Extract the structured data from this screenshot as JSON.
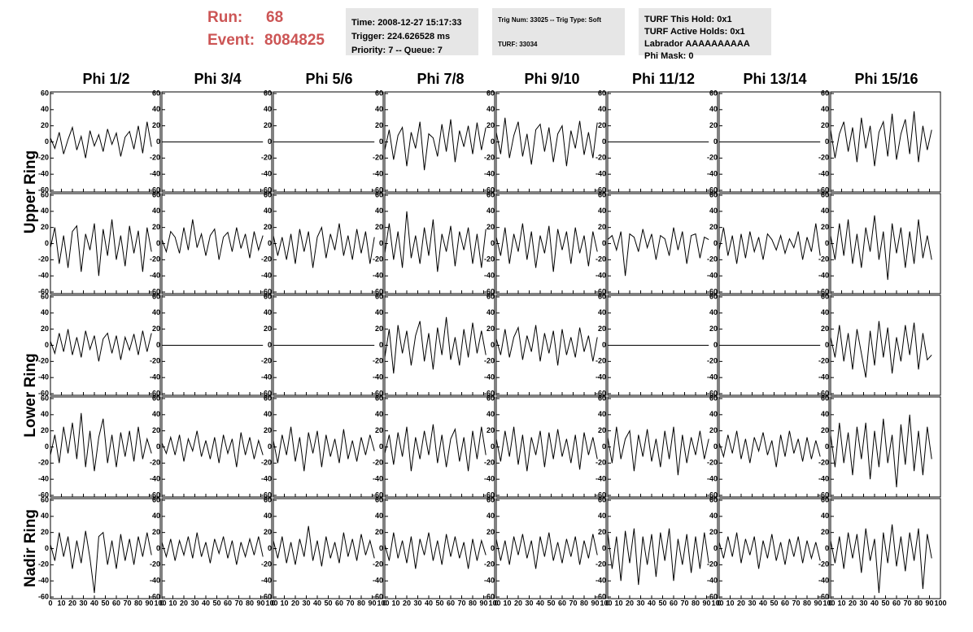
{
  "header": {
    "run_label": "Run:",
    "run": "68",
    "event_label": "Event:",
    "event": "8084825"
  },
  "info_boxes": [
    [
      "Time: 2008-12-27 15:17:33",
      "Trigger: 224.626528 ms",
      "Priority: 7 -- Queue: 7"
    ],
    [
      "Trig Num: 33025 -- Trig Type: Soft",
      "TURF: 33034"
    ],
    [
      "TURF This Hold: 0x1",
      "TURF Active Holds: 0x1",
      "Labrador AAAAAAAAAA",
      "Phi Mask: 0"
    ]
  ],
  "ring_labels": [
    "Upper Ring",
    "Lower Ring",
    "Nadir Ring"
  ],
  "chart_data": {
    "type": "line",
    "color": "#000000",
    "columns": [
      "Phi 1/2",
      "Phi 3/4",
      "Phi 5/6",
      "Phi 7/8",
      "Phi 9/10",
      "Phi 11/12",
      "Phi 13/14",
      "Phi 15/16"
    ],
    "xlim": [
      0,
      100
    ],
    "xticks": [
      0,
      10,
      20,
      30,
      40,
      50,
      60,
      70,
      80,
      90,
      100
    ],
    "ylim": [
      -62,
      62
    ],
    "yticks": [
      60,
      40,
      20,
      0,
      -20,
      -40,
      -60
    ],
    "x": [
      0,
      4,
      8,
      12,
      16,
      20,
      24,
      28,
      32,
      36,
      40,
      44,
      48,
      52,
      56,
      60,
      64,
      68,
      72,
      76,
      80,
      84,
      88,
      92
    ],
    "series": [
      {
        "values": [
          5,
          -8,
          12,
          -15,
          3,
          18,
          -10,
          7,
          -20,
          14,
          -5,
          9,
          -12,
          16,
          -3,
          11,
          -18,
          6,
          13,
          -9,
          20,
          -14,
          25,
          -6
        ]
      },
      {
        "values": [
          0,
          0,
          0,
          0,
          0,
          0,
          0,
          0,
          0,
          0,
          0,
          0,
          0,
          0,
          0,
          0,
          0,
          0,
          0,
          0,
          0,
          0,
          0,
          0
        ]
      },
      {
        "values": [
          0,
          0,
          0,
          0,
          0,
          0,
          0,
          0,
          0,
          0,
          0,
          0,
          0,
          0,
          0,
          0,
          0,
          0,
          0,
          0,
          0,
          0,
          0,
          0
        ]
      },
      {
        "values": [
          -10,
          15,
          -22,
          8,
          18,
          -30,
          12,
          -8,
          25,
          -35,
          10,
          5,
          -18,
          22,
          -12,
          28,
          -25,
          14,
          -6,
          20,
          -15,
          24,
          -10,
          18
        ]
      },
      {
        "values": [
          12,
          -15,
          30,
          -20,
          8,
          25,
          -18,
          10,
          -28,
          15,
          22,
          -12,
          18,
          -25,
          10,
          20,
          -30,
          14,
          -8,
          26,
          -16,
          12,
          -20,
          24
        ]
      },
      {
        "values": [
          0,
          0,
          0,
          0,
          0,
          0,
          0,
          0,
          0,
          0,
          0,
          0,
          0,
          0,
          0,
          0,
          0,
          0,
          0,
          0,
          0,
          0,
          0,
          0
        ]
      },
      {
        "values": [
          0,
          0,
          0,
          0,
          0,
          0,
          0,
          0,
          0,
          0,
          0,
          0,
          0,
          0,
          0,
          0,
          0,
          0,
          0,
          0,
          0,
          0,
          0,
          0
        ]
      },
      {
        "values": [
          15,
          -20,
          10,
          25,
          -12,
          18,
          -25,
          30,
          -8,
          20,
          -30,
          12,
          25,
          -18,
          35,
          -22,
          10,
          28,
          -15,
          38,
          -25,
          20,
          -10,
          15
        ]
      },
      {
        "values": [
          -5,
          20,
          -25,
          10,
          -30,
          15,
          22,
          -35,
          12,
          -8,
          25,
          -40,
          18,
          -15,
          30,
          -20,
          10,
          -28,
          22,
          -12,
          16,
          -35,
          20,
          -10
        ]
      },
      {
        "values": [
          5,
          -10,
          15,
          8,
          -12,
          20,
          -8,
          30,
          -5,
          12,
          -15,
          10,
          18,
          -20,
          8,
          14,
          -10,
          20,
          -6,
          12,
          -18,
          15,
          -8,
          10
        ]
      },
      {
        "values": [
          10,
          -15,
          8,
          -20,
          12,
          -25,
          18,
          -10,
          15,
          -30,
          8,
          20,
          -18,
          12,
          -8,
          25,
          -15,
          10,
          -20,
          18,
          -12,
          15,
          -25,
          8
        ]
      },
      {
        "values": [
          -12,
          25,
          -20,
          15,
          -30,
          40,
          -18,
          10,
          -25,
          20,
          -15,
          30,
          -35,
          12,
          -10,
          22,
          -28,
          15,
          -8,
          20,
          -25,
          12,
          -30,
          18
        ]
      },
      {
        "values": [
          8,
          -15,
          20,
          -25,
          12,
          -10,
          25,
          -20,
          15,
          -30,
          10,
          -12,
          22,
          -35,
          18,
          -8,
          15,
          -25,
          20,
          -12,
          10,
          -28,
          15,
          -10
        ]
      },
      {
        "values": [
          5,
          10,
          -8,
          15,
          -40,
          12,
          8,
          -10,
          18,
          -5,
          12,
          -20,
          10,
          6,
          -15,
          20,
          -8,
          15,
          -25,
          10,
          12,
          -18,
          8,
          5
        ]
      },
      {
        "values": [
          -8,
          20,
          -15,
          10,
          -25,
          12,
          -18,
          15,
          -10,
          8,
          -20,
          12,
          5,
          -8,
          10,
          -12,
          6,
          -5,
          15,
          -20,
          8,
          -10,
          25,
          -15
        ]
      },
      {
        "values": [
          10,
          -20,
          25,
          -15,
          30,
          -25,
          12,
          -30,
          20,
          -10,
          35,
          -20,
          15,
          -45,
          25,
          -12,
          20,
          -30,
          15,
          -25,
          30,
          -18,
          10,
          -20
        ]
      },
      {
        "values": [
          5,
          -10,
          15,
          -8,
          20,
          -12,
          10,
          -15,
          18,
          -5,
          12,
          -20,
          8,
          15,
          -10,
          12,
          -18,
          10,
          -6,
          14,
          -12,
          18,
          -8,
          15
        ]
      },
      {
        "values": [
          0,
          0,
          0,
          0,
          0,
          0,
          0,
          0,
          0,
          0,
          0,
          0,
          0,
          0,
          0,
          0,
          0,
          0,
          0,
          0,
          0,
          0,
          0,
          0
        ]
      },
      {
        "values": [
          0,
          0,
          0,
          0,
          0,
          0,
          0,
          0,
          0,
          0,
          0,
          0,
          0,
          0,
          0,
          0,
          0,
          0,
          0,
          0,
          0,
          0,
          0,
          0
        ]
      },
      {
        "values": [
          -15,
          20,
          -35,
          25,
          -10,
          18,
          -25,
          12,
          30,
          -20,
          15,
          -30,
          22,
          -12,
          35,
          -18,
          10,
          -25,
          20,
          -15,
          28,
          -10,
          18,
          -12
        ]
      },
      {
        "values": [
          8,
          -12,
          20,
          -15,
          10,
          22,
          -18,
          12,
          -8,
          25,
          -20,
          15,
          -10,
          18,
          -25,
          20,
          -12,
          10,
          -15,
          22,
          -8,
          12,
          -20,
          10
        ]
      },
      {
        "values": [
          0,
          0,
          0,
          0,
          0,
          0,
          0,
          0,
          0,
          0,
          0,
          0,
          0,
          0,
          0,
          0,
          0,
          0,
          0,
          0,
          0,
          0,
          0,
          0
        ]
      },
      {
        "values": [
          0,
          0,
          0,
          0,
          0,
          0,
          0,
          0,
          0,
          0,
          0,
          0,
          0,
          0,
          0,
          0,
          0,
          0,
          0,
          0,
          0,
          0,
          0,
          0
        ]
      },
      {
        "values": [
          10,
          -15,
          25,
          -20,
          15,
          -30,
          20,
          -10,
          -40,
          18,
          -25,
          30,
          -15,
          22,
          -35,
          10,
          -20,
          25,
          -12,
          28,
          -30,
          15,
          -18,
          -12
        ]
      },
      {
        "values": [
          -10,
          15,
          -20,
          25,
          -8,
          30,
          -15,
          42,
          -25,
          20,
          -30,
          12,
          35,
          -20,
          15,
          -25,
          18,
          -12,
          20,
          -18,
          25,
          -15,
          10,
          -8
        ]
      },
      {
        "values": [
          5,
          -8,
          12,
          -10,
          15,
          -18,
          10,
          -5,
          20,
          -12,
          8,
          -15,
          12,
          -20,
          15,
          -8,
          10,
          -25,
          18,
          -10,
          12,
          -15,
          8,
          -10
        ]
      },
      {
        "values": [
          8,
          -20,
          15,
          -10,
          25,
          -18,
          12,
          -30,
          18,
          -8,
          20,
          -25,
          15,
          -12,
          10,
          -20,
          22,
          -15,
          8,
          -18,
          12,
          -10,
          15,
          -5
        ]
      },
      {
        "values": [
          -8,
          15,
          -22,
          18,
          -12,
          25,
          -30,
          12,
          -15,
          20,
          -10,
          28,
          -20,
          15,
          -25,
          10,
          22,
          -18,
          12,
          -30,
          20,
          -15,
          25,
          -10
        ]
      },
      {
        "values": [
          10,
          -18,
          20,
          -12,
          25,
          -22,
          15,
          -30,
          12,
          -10,
          20,
          -25,
          18,
          -15,
          22,
          -12,
          10,
          -20,
          15,
          -28,
          18,
          -10,
          12,
          -15
        ]
      },
      {
        "values": [
          12,
          -20,
          25,
          -15,
          10,
          20,
          -30,
          15,
          -12,
          22,
          -18,
          10,
          -25,
          20,
          -15,
          25,
          -35,
          15,
          -20,
          12,
          -10,
          20,
          -15,
          10
        ]
      },
      {
        "values": [
          5,
          -12,
          15,
          -8,
          20,
          -15,
          10,
          -20,
          12,
          -5,
          18,
          -10,
          8,
          -25,
          15,
          -12,
          20,
          -8,
          10,
          -18,
          12,
          -15,
          8,
          -12
        ]
      },
      {
        "values": [
          15,
          -25,
          30,
          -20,
          18,
          -35,
          25,
          -15,
          30,
          -40,
          20,
          -25,
          35,
          -20,
          15,
          -50,
          28,
          -22,
          40,
          -30,
          20,
          -35,
          25,
          -15
        ]
      },
      {
        "values": [
          5,
          -15,
          20,
          -10,
          15,
          -25,
          10,
          -18,
          22,
          -12,
          -55,
          15,
          20,
          -20,
          10,
          -25,
          18,
          -15,
          12,
          -20,
          15,
          -10,
          20,
          -8
        ]
      },
      {
        "values": [
          8,
          -10,
          12,
          -15,
          10,
          -8,
          15,
          -12,
          20,
          -10,
          8,
          -18,
          12,
          -6,
          15,
          -12,
          10,
          -20,
          8,
          -10,
          12,
          -8,
          15,
          -10
        ]
      },
      {
        "values": [
          10,
          -12,
          15,
          -18,
          8,
          -20,
          12,
          -10,
          28,
          -15,
          10,
          -22,
          15,
          -12,
          8,
          -18,
          20,
          -10,
          12,
          -15,
          18,
          -8,
          10,
          -12
        ]
      },
      {
        "values": [
          5,
          -15,
          20,
          -12,
          10,
          -18,
          15,
          -25,
          12,
          -8,
          20,
          -15,
          10,
          -20,
          18,
          -10,
          15,
          -12,
          8,
          -25,
          12,
          -15,
          10,
          -8
        ]
      },
      {
        "values": [
          12,
          -15,
          10,
          -20,
          15,
          -8,
          18,
          -12,
          10,
          -25,
          15,
          -10,
          20,
          -15,
          8,
          -18,
          12,
          -10,
          15,
          -20,
          10,
          -12,
          18,
          -8
        ]
      },
      {
        "values": [
          20,
          -25,
          15,
          -40,
          22,
          -18,
          25,
          -45,
          15,
          -20,
          18,
          -35,
          20,
          -15,
          25,
          -40,
          12,
          -20,
          18,
          -30,
          15,
          -25,
          20,
          -18
        ]
      },
      {
        "values": [
          8,
          -12,
          15,
          -10,
          20,
          -18,
          12,
          -8,
          15,
          -25,
          10,
          -12,
          18,
          -15,
          8,
          -20,
          12,
          -10,
          15,
          -18,
          10,
          -12,
          8,
          -15
        ]
      },
      {
        "values": [
          10,
          -18,
          15,
          -25,
          20,
          -12,
          18,
          -30,
          25,
          -15,
          12,
          -55,
          20,
          -18,
          30,
          -22,
          15,
          -28,
          20,
          -15,
          25,
          -50,
          18,
          -12
        ]
      }
    ]
  }
}
